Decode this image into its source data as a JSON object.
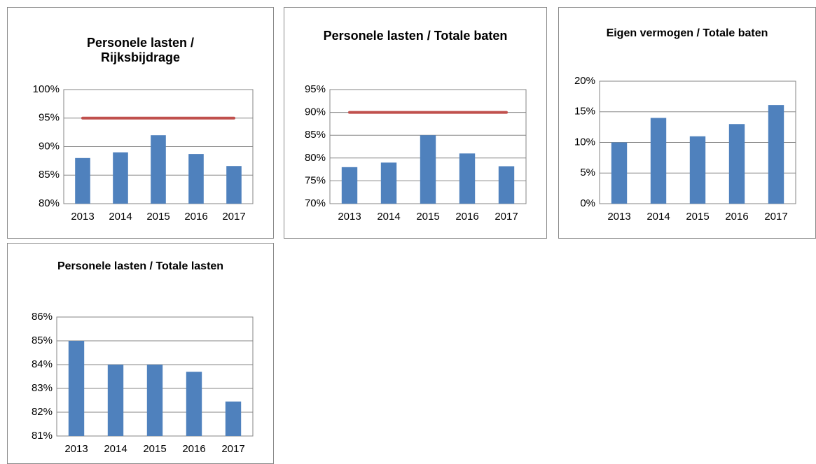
{
  "chart_data": [
    {
      "type": "bar",
      "title": "Personele lasten / Rijksbijdrage",
      "categories": [
        "2013",
        "2014",
        "2015",
        "2016",
        "2017"
      ],
      "series": [
        {
          "color": "#4f81bd",
          "values": [
            88,
            89,
            92,
            88.7,
            86.6
          ]
        },
        {
          "type": "line",
          "color": "#c0504d",
          "values": [
            95,
            95,
            95,
            95,
            95
          ]
        }
      ],
      "ylim": [
        80,
        100
      ],
      "yticks": [
        {
          "value": 80,
          "label": "80%"
        },
        {
          "value": 85,
          "label": "85%"
        },
        {
          "value": 90,
          "label": "90%"
        },
        {
          "value": 95,
          "label": "95%"
        },
        {
          "value": 100,
          "label": "100%"
        }
      ],
      "grid": true
    },
    {
      "type": "bar",
      "title": "Personele lasten / Totale baten",
      "categories": [
        "2013",
        "2014",
        "2015",
        "2016",
        "2017"
      ],
      "series": [
        {
          "color": "#4f81bd",
          "values": [
            78,
            79,
            85,
            81,
            78.2
          ]
        },
        {
          "type": "line",
          "color": "#c0504d",
          "values": [
            90,
            90,
            90,
            90,
            90
          ]
        }
      ],
      "ylim": [
        70,
        95
      ],
      "yticks": [
        {
          "value": 70,
          "label": "70%"
        },
        {
          "value": 75,
          "label": "75%"
        },
        {
          "value": 80,
          "label": "80%"
        },
        {
          "value": 85,
          "label": "85%"
        },
        {
          "value": 90,
          "label": "90%"
        },
        {
          "value": 95,
          "label": "95%"
        }
      ],
      "grid": true
    },
    {
      "type": "bar",
      "title": "Eigen vermogen / Totale baten",
      "categories": [
        "2013",
        "2014",
        "2015",
        "2016",
        "2017"
      ],
      "series": [
        {
          "color": "#4f81bd",
          "values": [
            10,
            14,
            11,
            13,
            16.1
          ]
        }
      ],
      "ylim": [
        0,
        20
      ],
      "yticks": [
        {
          "value": 0,
          "label": "0%"
        },
        {
          "value": 5,
          "label": "5%"
        },
        {
          "value": 10,
          "label": "10%"
        },
        {
          "value": 15,
          "label": "15%"
        },
        {
          "value": 20,
          "label": "20%"
        }
      ],
      "grid": true
    },
    {
      "type": "bar",
      "title": "Personele lasten / Totale lasten",
      "categories": [
        "2013",
        "2014",
        "2015",
        "2016",
        "2017"
      ],
      "series": [
        {
          "color": "#4f81bd",
          "values": [
            85,
            84,
            84,
            83.7,
            82.45
          ]
        }
      ],
      "ylim": [
        81,
        86
      ],
      "yticks": [
        {
          "value": 81,
          "label": "81%"
        },
        {
          "value": 82,
          "label": "82%"
        },
        {
          "value": 83,
          "label": "83%"
        },
        {
          "value": 84,
          "label": "84%"
        },
        {
          "value": 85,
          "label": "85%"
        },
        {
          "value": 86,
          "label": "86%"
        }
      ],
      "grid": true
    }
  ]
}
